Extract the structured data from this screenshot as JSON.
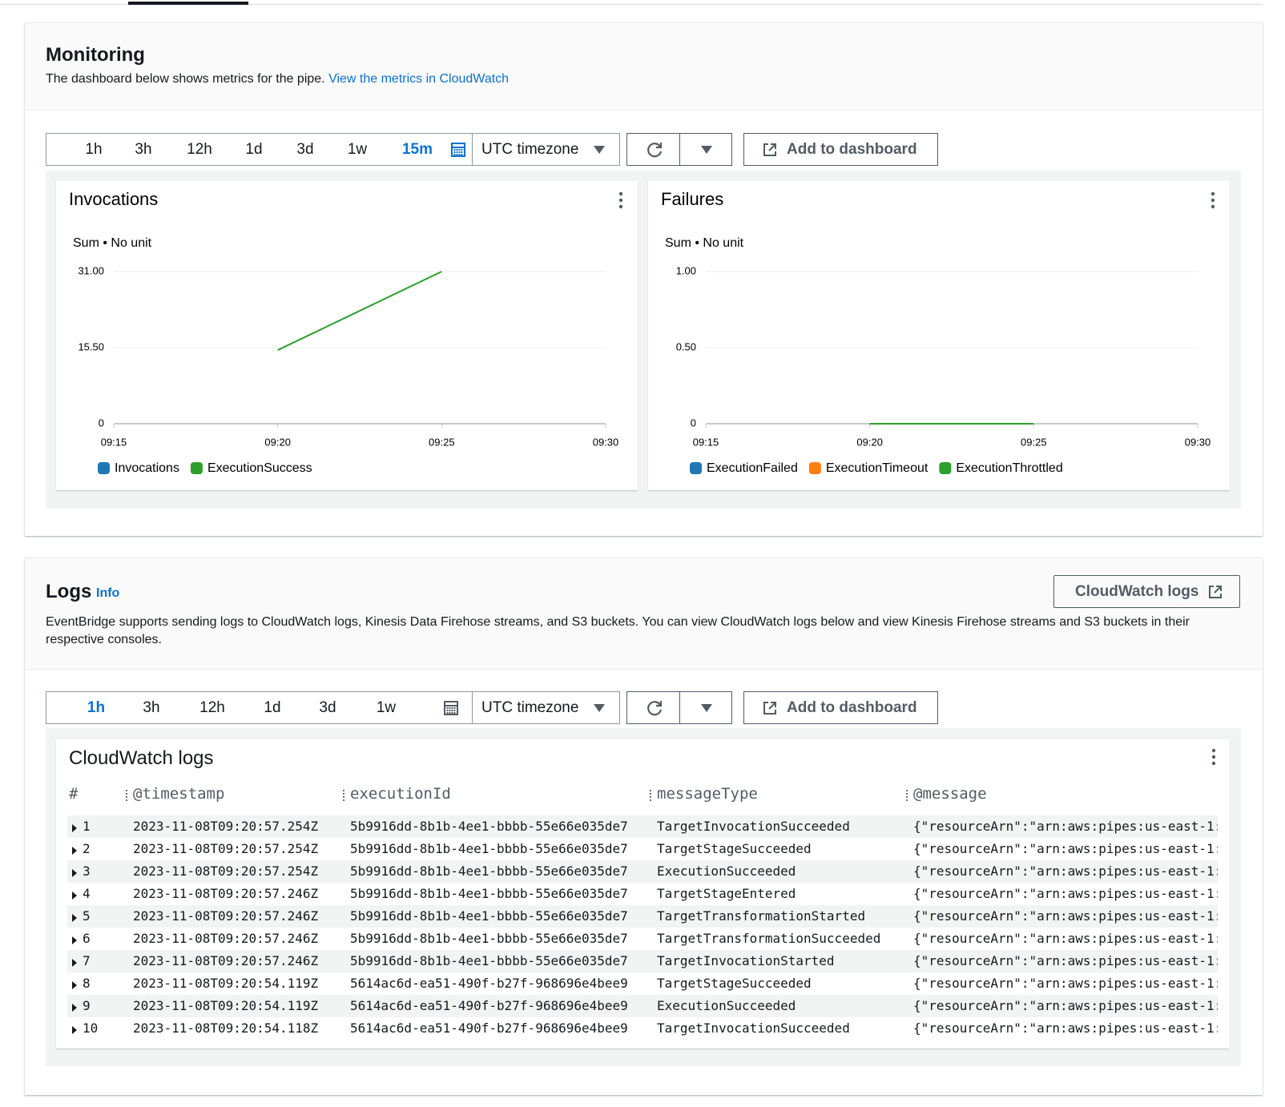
{
  "monitoring": {
    "title": "Monitoring",
    "description": "The dashboard below shows metrics for the pipe.",
    "link": "View the metrics in CloudWatch",
    "toolbar": {
      "ranges": [
        "1h",
        "3h",
        "12h",
        "1d",
        "3d",
        "1w",
        "15m"
      ],
      "active_range": 6,
      "timezone": "UTC timezone",
      "add_button": "Add to dashboard"
    }
  },
  "chart_data": [
    {
      "type": "line",
      "title": "Invocations",
      "y_label": "Sum • No unit",
      "categories": [
        "09:15",
        "09:20",
        "09:25",
        "09:30"
      ],
      "ylim": [
        0,
        31
      ],
      "yticks": [
        0,
        {
          "value": 15.5,
          "label": "15.50"
        },
        {
          "value": 31,
          "label": "31.00"
        }
      ],
      "grid": true,
      "series": [
        {
          "name": "Invocations",
          "color": "#1f77b4",
          "values": [
            null,
            null,
            null,
            null
          ]
        },
        {
          "name": "ExecutionSuccess",
          "color": "#2ca02c",
          "values": [
            null,
            15,
            31,
            null
          ]
        }
      ]
    },
    {
      "type": "line",
      "title": "Failures",
      "y_label": "Sum • No unit",
      "categories": [
        "09:15",
        "09:20",
        "09:25",
        "09:30"
      ],
      "ylim": [
        0,
        1
      ],
      "yticks": [
        0,
        {
          "value": 0.5,
          "label": "0.50"
        },
        {
          "value": 1,
          "label": "1.00"
        }
      ],
      "grid": true,
      "series": [
        {
          "name": "ExecutionFailed",
          "color": "#1f77b4",
          "values": [
            null,
            null,
            null,
            null
          ]
        },
        {
          "name": "ExecutionTimeout",
          "color": "#ff7f0e",
          "values": [
            null,
            null,
            null,
            null
          ]
        },
        {
          "name": "ExecutionThrottled",
          "color": "#2ca02c",
          "values": [
            null,
            0,
            0,
            null
          ]
        }
      ]
    }
  ],
  "logs": {
    "title": "Logs",
    "info": "Info",
    "button": "CloudWatch logs",
    "description": "EventBridge supports sending logs to CloudWatch logs, Kinesis Data Firehose streams, and S3 buckets. You can view CloudWatch logs below and view Kinesis Firehose streams and S3 buckets in their respective consoles.",
    "toolbar": {
      "ranges": [
        "1h",
        "3h",
        "12h",
        "1d",
        "3d",
        "1w"
      ],
      "active_range": 0,
      "timezone": "UTC timezone",
      "add_button": "Add to dashboard"
    },
    "table": {
      "title": "CloudWatch logs",
      "columns": [
        "#",
        "@timestamp",
        "executionId",
        "messageType",
        "@message"
      ],
      "rows": [
        [
          1,
          "2023-11-08T09:20:57.254Z",
          "5b9916dd-8b1b-4ee1-bbbb-55e66e035de7",
          "TargetInvocationSucceeded",
          "{\"resourceArn\":\"arn:aws:pipes:us-east-1:"
        ],
        [
          2,
          "2023-11-08T09:20:57.254Z",
          "5b9916dd-8b1b-4ee1-bbbb-55e66e035de7",
          "TargetStageSucceeded",
          "{\"resourceArn\":\"arn:aws:pipes:us-east-1:"
        ],
        [
          3,
          "2023-11-08T09:20:57.254Z",
          "5b9916dd-8b1b-4ee1-bbbb-55e66e035de7",
          "ExecutionSucceeded",
          "{\"resourceArn\":\"arn:aws:pipes:us-east-1:"
        ],
        [
          4,
          "2023-11-08T09:20:57.246Z",
          "5b9916dd-8b1b-4ee1-bbbb-55e66e035de7",
          "TargetStageEntered",
          "{\"resourceArn\":\"arn:aws:pipes:us-east-1:"
        ],
        [
          5,
          "2023-11-08T09:20:57.246Z",
          "5b9916dd-8b1b-4ee1-bbbb-55e66e035de7",
          "TargetTransformationStarted",
          "{\"resourceArn\":\"arn:aws:pipes:us-east-1:"
        ],
        [
          6,
          "2023-11-08T09:20:57.246Z",
          "5b9916dd-8b1b-4ee1-bbbb-55e66e035de7",
          "TargetTransformationSucceeded",
          "{\"resourceArn\":\"arn:aws:pipes:us-east-1:"
        ],
        [
          7,
          "2023-11-08T09:20:57.246Z",
          "5b9916dd-8b1b-4ee1-bbbb-55e66e035de7",
          "TargetInvocationStarted",
          "{\"resourceArn\":\"arn:aws:pipes:us-east-1:"
        ],
        [
          8,
          "2023-11-08T09:20:54.119Z",
          "5614ac6d-ea51-490f-b27f-968696e4bee9",
          "TargetStageSucceeded",
          "{\"resourceArn\":\"arn:aws:pipes:us-east-1:"
        ],
        [
          9,
          "2023-11-08T09:20:54.119Z",
          "5614ac6d-ea51-490f-b27f-968696e4bee9",
          "ExecutionSucceeded",
          "{\"resourceArn\":\"arn:aws:pipes:us-east-1:"
        ],
        [
          10,
          "2023-11-08T09:20:54.118Z",
          "5614ac6d-ea51-490f-b27f-968696e4bee9",
          "TargetInvocationSucceeded",
          "{\"resourceArn\":\"arn:aws:pipes:us-east-1:"
        ]
      ]
    }
  }
}
